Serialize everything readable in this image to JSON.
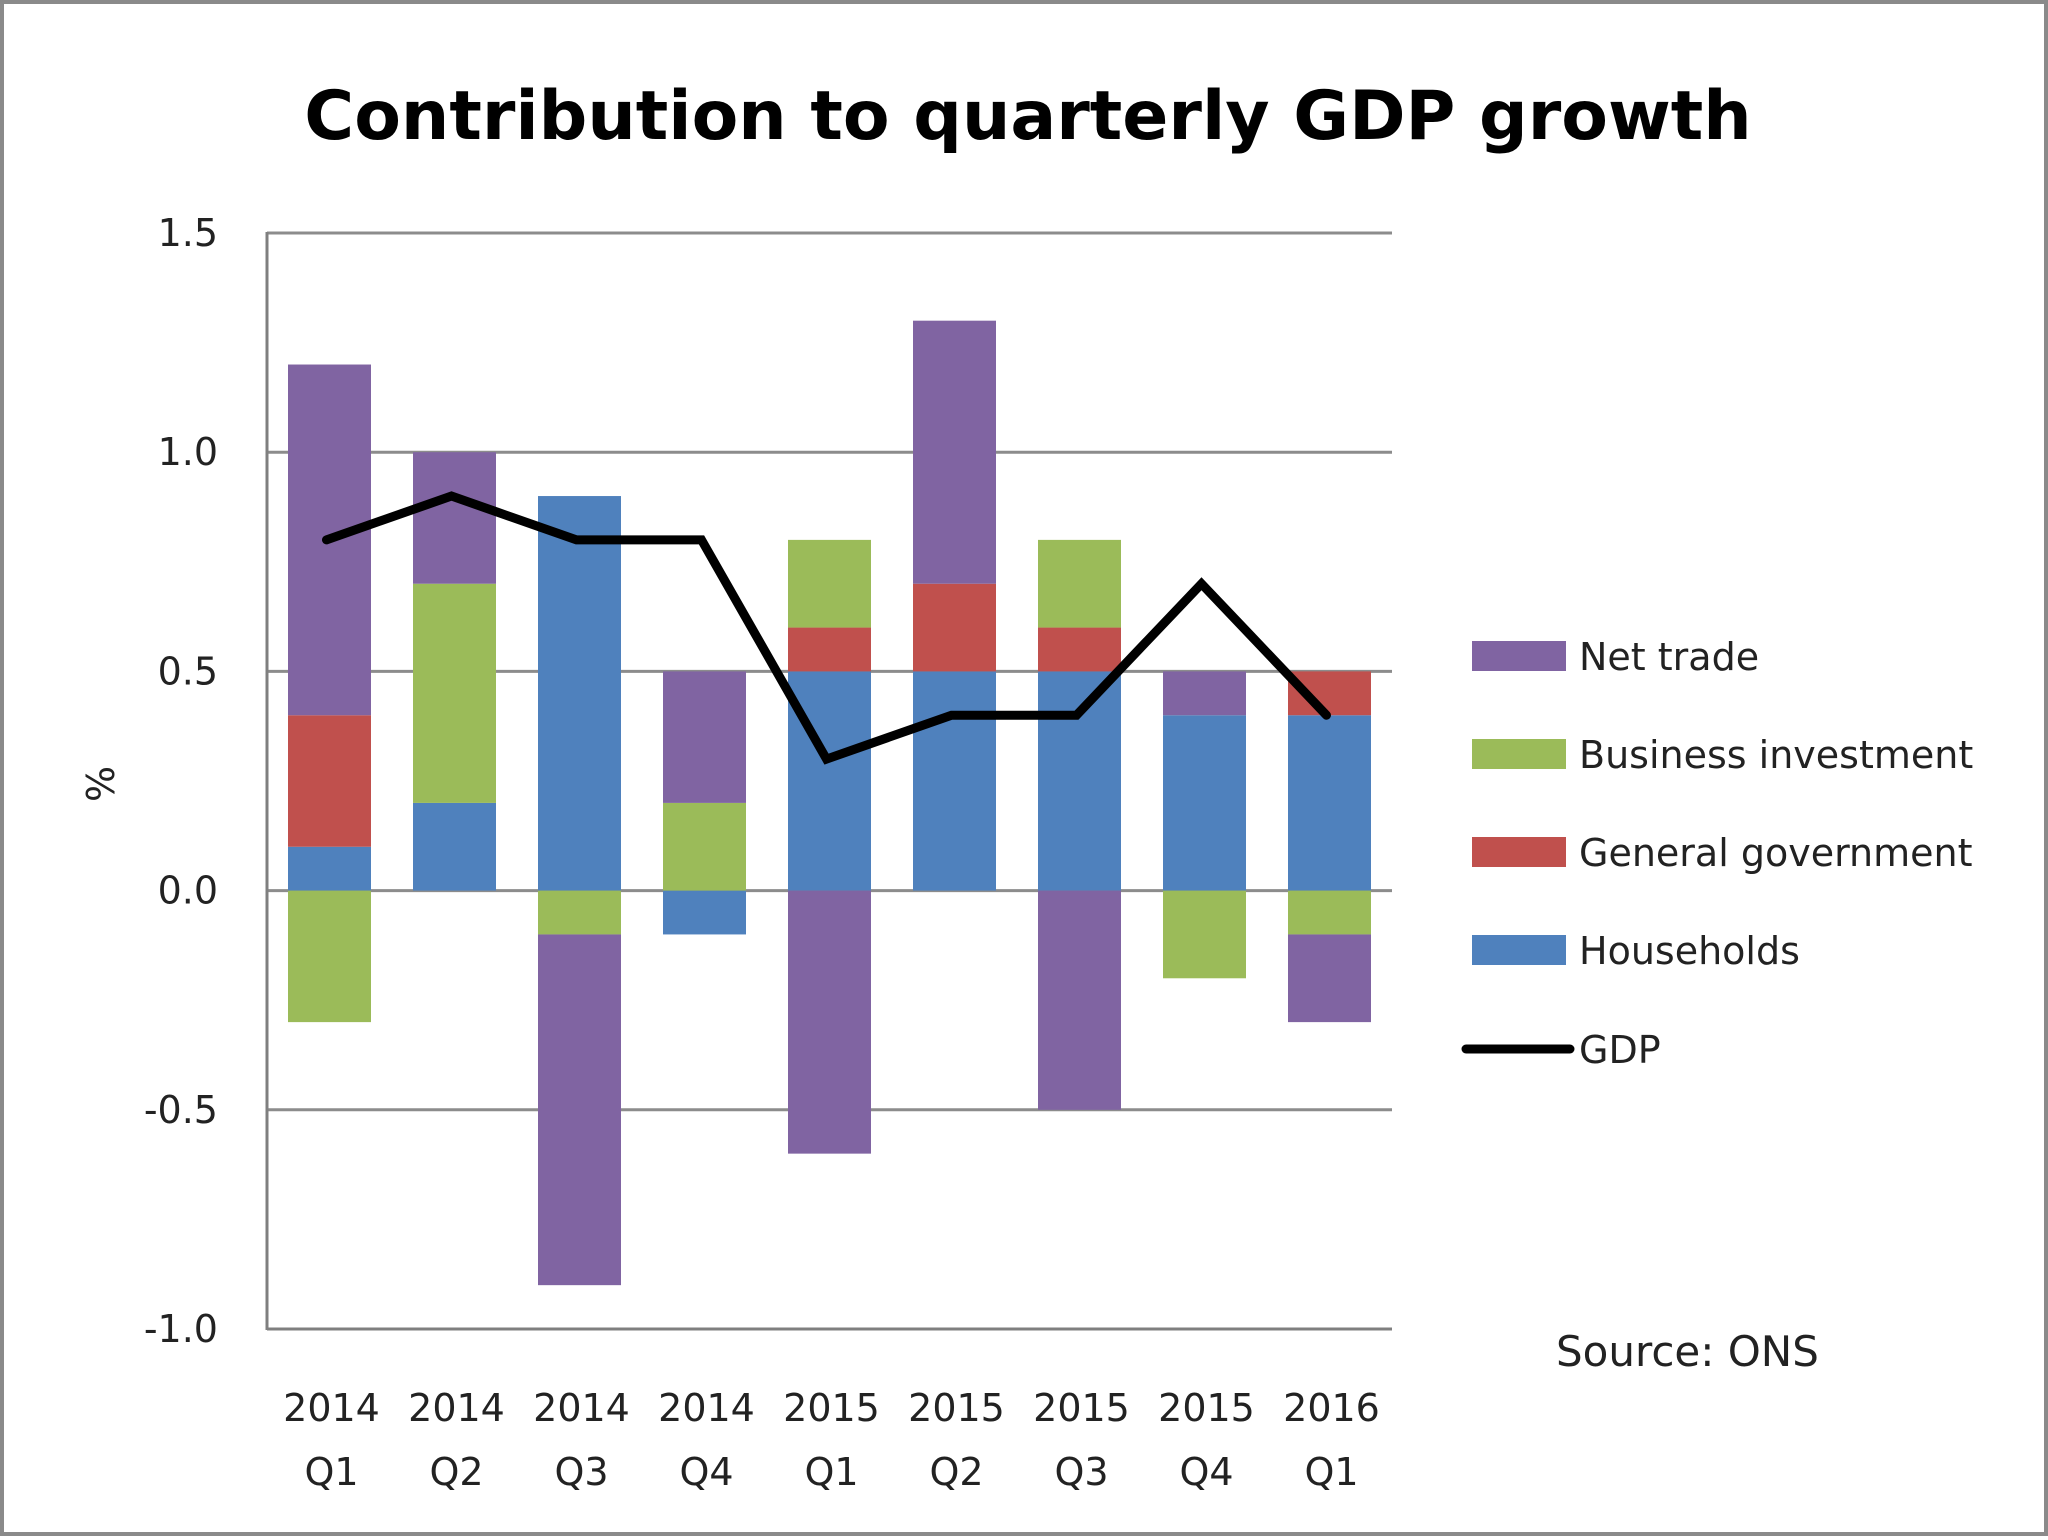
{
  "chart_data": {
    "type": "bar",
    "subtype": "stacked-bar-with-line",
    "title": "Contribution to quarterly GDP growth",
    "xlabel": "",
    "ylabel": "%",
    "ylim": [
      -1.0,
      1.5
    ],
    "yticks": [
      1.5,
      1.0,
      0.5,
      0.0,
      -0.5,
      -1.0
    ],
    "ytick_labels": [
      "1.5",
      "1.0",
      "0.5",
      "0.0",
      "-0.5",
      "-1.0"
    ],
    "grid": true,
    "legend_position": "right",
    "categories": [
      [
        "2014",
        "Q1"
      ],
      [
        "2014",
        "Q2"
      ],
      [
        "2014",
        "Q3"
      ],
      [
        "2014",
        "Q4"
      ],
      [
        "2015",
        "Q1"
      ],
      [
        "2015",
        "Q2"
      ],
      [
        "2015",
        "Q3"
      ],
      [
        "2015",
        "Q4"
      ],
      [
        "2016",
        "Q1"
      ]
    ],
    "stack_order": [
      "Households",
      "General government",
      "Business investment",
      "Net trade"
    ],
    "series": [
      {
        "name": "Net trade",
        "kind": "bar",
        "color": "#8064a2",
        "values": [
          0.8,
          0.3,
          -0.8,
          0.3,
          -0.6,
          0.6,
          -0.5,
          0.1,
          -0.2
        ]
      },
      {
        "name": "Business investment",
        "kind": "bar",
        "color": "#9bbb59",
        "values": [
          -0.3,
          0.5,
          -0.1,
          0.2,
          0.2,
          0.0,
          0.2,
          -0.2,
          -0.1
        ]
      },
      {
        "name": "General government",
        "kind": "bar",
        "color": "#c0504d",
        "values": [
          0.3,
          0.0,
          0.0,
          0.0,
          0.1,
          0.2,
          0.1,
          0.0,
          0.1
        ]
      },
      {
        "name": "Households",
        "kind": "bar",
        "color": "#4f81bd",
        "values": [
          0.1,
          0.2,
          0.9,
          -0.1,
          0.5,
          0.5,
          0.5,
          0.4,
          0.4
        ]
      },
      {
        "name": "GDP",
        "kind": "line",
        "color": "#000000",
        "values": [
          0.8,
          0.9,
          0.8,
          0.8,
          0.3,
          0.4,
          0.4,
          0.7,
          0.4
        ]
      }
    ],
    "legend": [
      "Net trade",
      "Business investment",
      "General government",
      "Households",
      "GDP"
    ],
    "annotations": [
      "Source: ONS"
    ]
  }
}
